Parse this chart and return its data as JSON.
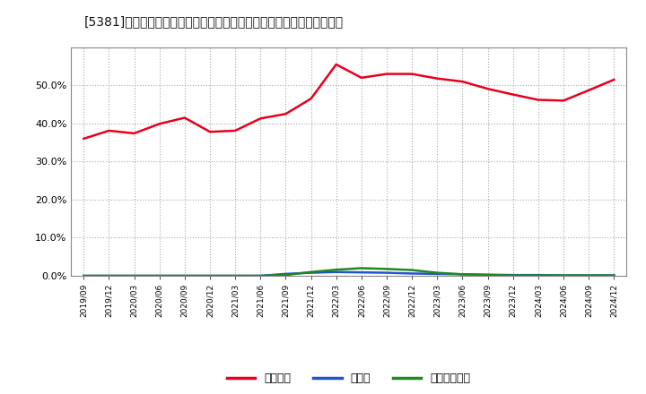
{
  "title": "[5381]　自己資本、のれん、繰延税金資産の総資産に対する比率の推移",
  "x_labels": [
    "2019/09",
    "2019/12",
    "2020/03",
    "2020/06",
    "2020/09",
    "2020/12",
    "2021/03",
    "2021/06",
    "2021/09",
    "2021/12",
    "2022/03",
    "2022/06",
    "2022/09",
    "2022/12",
    "2023/03",
    "2023/06",
    "2023/09",
    "2023/12",
    "2024/03",
    "2024/06",
    "2024/09",
    "2024/12"
  ],
  "jiko_shihon": [
    0.36,
    0.381,
    0.374,
    0.399,
    0.415,
    0.378,
    0.381,
    0.413,
    0.425,
    0.465,
    0.555,
    0.52,
    0.53,
    0.53,
    0.518,
    0.51,
    0.491,
    0.476,
    0.462,
    0.46,
    0.487,
    0.515
  ],
  "noren": [
    0.0,
    0.0,
    0.0,
    0.0,
    0.0,
    0.0,
    0.0,
    0.0,
    0.005,
    0.008,
    0.01,
    0.009,
    0.008,
    0.006,
    0.005,
    0.004,
    0.003,
    0.002,
    0.002,
    0.001,
    0.001,
    0.001
  ],
  "kurinobe": [
    0.0,
    0.0,
    0.0,
    0.0,
    0.0,
    0.0,
    0.0,
    0.0,
    0.002,
    0.01,
    0.016,
    0.02,
    0.018,
    0.015,
    0.008,
    0.004,
    0.002,
    0.001,
    0.001,
    0.001,
    0.001,
    0.001
  ],
  "jiko_color": "#e8001c",
  "noren_color": "#2255cc",
  "kurinobe_color": "#228822",
  "background_color": "#ffffff",
  "grid_color": "#aaaaaa",
  "legend_label_jiko": "自己資本",
  "legend_label_noren": "のれん",
  "legend_label_kurinobe": "繰延税金資産",
  "ylim": [
    0.0,
    0.6
  ],
  "yticks": [
    0.0,
    0.1,
    0.2,
    0.3,
    0.4,
    0.5
  ]
}
